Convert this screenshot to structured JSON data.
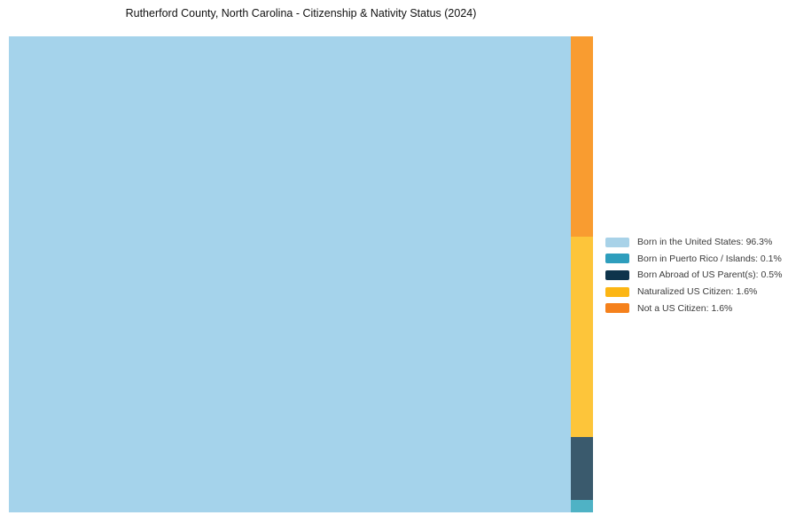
{
  "title": "Rutherford County, North Carolina - Citizenship & Nativity Status (2024)",
  "colors": {
    "background": "#ffffff",
    "title_text": "#111111",
    "legend_text": "#3a3a3a"
  },
  "chart_data": {
    "type": "treemap",
    "title": "Rutherford County, North Carolina - Citizenship & Nativity Status (2024)",
    "unit": "%",
    "legend_position": "right",
    "categories": [
      "Born in the United States",
      "Born in Puerto Rico / Islands",
      "Born Abroad of US Parent(s)",
      "Naturalized US Citizen",
      "Not a US Citizen"
    ],
    "values": [
      96.3,
      0.1,
      0.5,
      1.6,
      1.6
    ],
    "legend_labels": [
      "Born in the United States: 96.3%",
      "Born in Puerto Rico / Islands: 0.1%",
      "Born Abroad of US Parent(s): 0.5%",
      "Naturalized US Citizen: 1.6%",
      "Not a US Citizen: 1.6%"
    ],
    "legend_colors": [
      "#A8D2E8",
      "#2E9EBD",
      "#0E344C",
      "#FCB614",
      "#F5811C"
    ],
    "tile_colors": [
      "#A5D3EB",
      "#4FB2C5",
      "#3A5A6D",
      "#FDC53A",
      "#F99C30"
    ],
    "tile_slugs": [
      "born-in-the-united-states",
      "born-in-puerto-rico-islands",
      "born-abroad-of-us-parents",
      "naturalized-us-citizen",
      "not-a-us-citizen"
    ],
    "column_order_top_to_bottom": [
      "Not a US Citizen",
      "Naturalized US Citizen",
      "Born Abroad of US Parent(s)",
      "Born in Puerto Rico / Islands"
    ]
  }
}
